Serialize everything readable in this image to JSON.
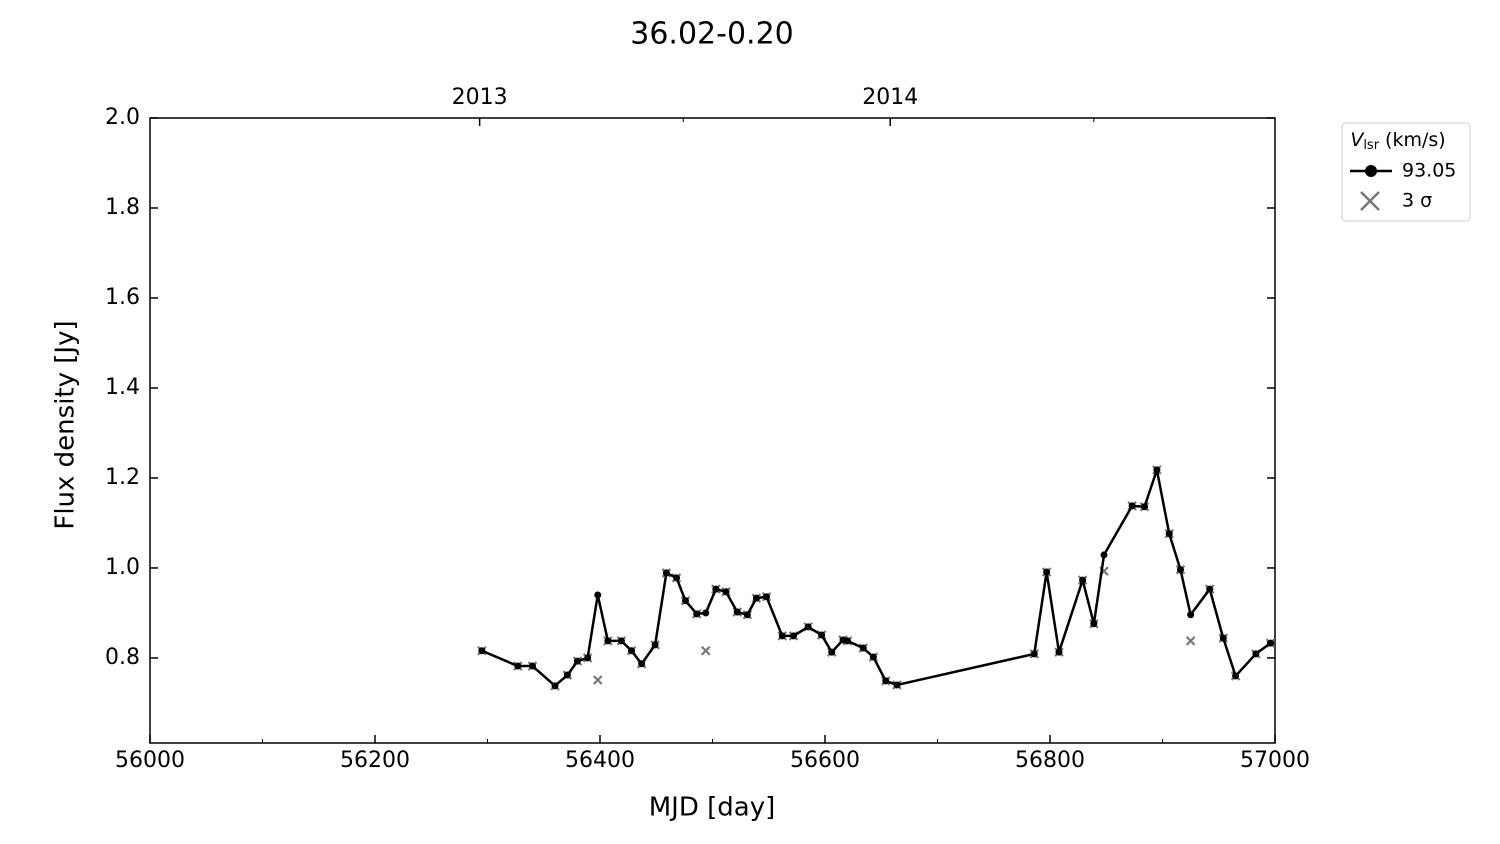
{
  "chart_data": {
    "type": "line",
    "title": "36.02-0.20",
    "x_label": "MJD [day]",
    "y_label": "Flux density [Jy]",
    "xlim": [
      56000,
      57000
    ],
    "xticks": [
      56000,
      56200,
      56400,
      56600,
      56800,
      57000
    ],
    "xminor": [
      56100,
      56300,
      56500,
      56700,
      56900
    ],
    "x2ticks": [
      {
        "value": 56293,
        "label": "2013"
      },
      {
        "value": 56658,
        "label": "2014"
      }
    ],
    "x2minor": [
      56474,
      56839
    ],
    "ylim": [
      0.611,
      2.0
    ],
    "yticks": [
      {
        "value": 0.8,
        "label": "0.8"
      },
      {
        "value": 1.0,
        "label": "1.0"
      },
      {
        "value": 1.2,
        "label": "1.2"
      },
      {
        "value": 1.4,
        "label": "1.4"
      },
      {
        "value": 1.6,
        "label": "1.6"
      },
      {
        "value": 1.8,
        "label": "1.8"
      },
      {
        "value": 2.0,
        "label": "2.0"
      }
    ],
    "legend_title": {
      "symbol": "V",
      "subscript": "lsr",
      "unit": "(km/s)"
    },
    "legend_position": "outside-upper-right",
    "x": [
      56295,
      56327,
      56340,
      56360,
      56371,
      56380,
      56389,
      56398,
      56407,
      56419,
      56428,
      56437,
      56449,
      56459,
      56468,
      56476,
      56486,
      56494,
      56503,
      56512,
      56522,
      56531,
      56539,
      56548,
      56562,
      56572,
      56585,
      56597,
      56606,
      56616,
      56620,
      56634,
      56643,
      56654,
      56664,
      56786,
      56797,
      56808,
      56829,
      56839,
      56848,
      56873,
      56884,
      56895,
      56906,
      56916,
      56925,
      56942,
      56954,
      56965,
      56983,
      56996
    ],
    "series": [
      {
        "name": "93.05",
        "color": "#000000",
        "marker": "circle",
        "line": true,
        "values": [
          0.816,
          0.782,
          0.782,
          0.738,
          0.762,
          0.793,
          0.8,
          0.94,
          0.838,
          0.838,
          0.816,
          0.787,
          0.829,
          0.989,
          0.978,
          0.927,
          0.898,
          0.9,
          0.953,
          0.947,
          0.902,
          0.896,
          0.933,
          0.936,
          0.849,
          0.849,
          0.869,
          0.851,
          0.813,
          0.84,
          0.838,
          0.822,
          0.802,
          0.749,
          0.74,
          0.809,
          0.991,
          0.813,
          0.973,
          0.876,
          1.029,
          1.138,
          1.136,
          1.218,
          1.076,
          0.996,
          0.896,
          0.953,
          0.844,
          0.76,
          0.809,
          0.833
        ]
      },
      {
        "name": "3 σ",
        "color": "#777777",
        "marker": "x",
        "line": false,
        "values": [
          0.816,
          0.782,
          0.782,
          0.738,
          0.762,
          0.793,
          0.8,
          0.751,
          0.838,
          0.838,
          0.816,
          0.787,
          0.829,
          0.989,
          0.978,
          0.927,
          0.898,
          0.816,
          0.953,
          0.947,
          0.902,
          0.896,
          0.933,
          0.936,
          0.849,
          0.849,
          0.869,
          0.851,
          0.813,
          0.84,
          0.838,
          0.822,
          0.802,
          0.749,
          0.74,
          0.809,
          0.991,
          0.813,
          0.973,
          0.876,
          0.993,
          1.138,
          1.136,
          1.218,
          1.076,
          0.996,
          0.838,
          0.953,
          0.844,
          0.76,
          0.809,
          0.833
        ]
      }
    ]
  }
}
